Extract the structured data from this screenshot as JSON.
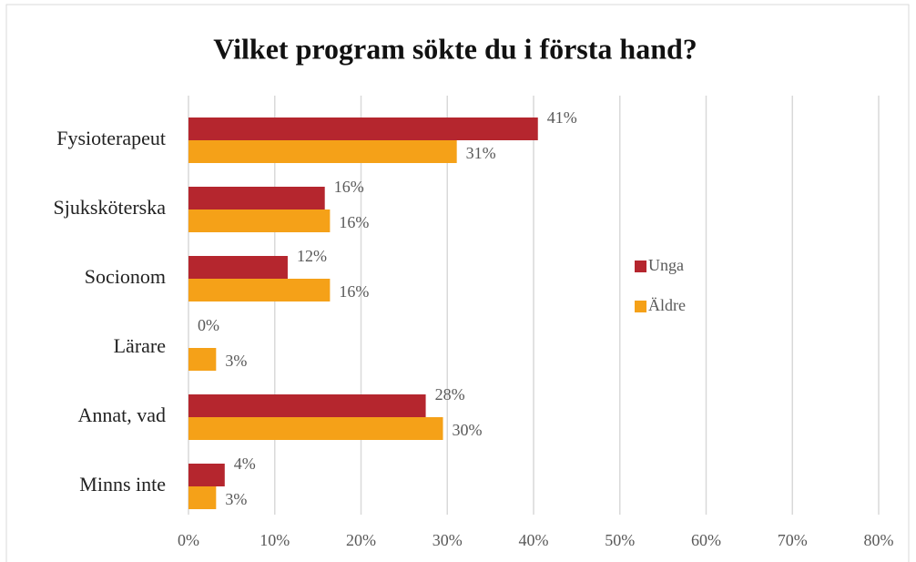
{
  "chart_data": {
    "type": "hbar",
    "title": "Vilket program sökte du i första hand?",
    "categories": [
      "Fysioterapeut",
      "Sjuksköterska",
      "Socionom",
      "Lärare",
      "Annat, vad",
      "Minns inte"
    ],
    "series": [
      {
        "name": "Unga",
        "color": "#b5262e",
        "values": [
          40.5,
          15.8,
          11.5,
          0,
          27.5,
          4.2
        ],
        "value_labels": [
          "41%",
          "16%",
          "12%",
          "0%",
          "28%",
          "4%"
        ]
      },
      {
        "name": "Äldre",
        "color": "#f5a118",
        "values": [
          31.1,
          16.4,
          16.4,
          3.2,
          29.5,
          3.2
        ],
        "value_labels": [
          "31%",
          "16%",
          "16%",
          "3%",
          "30%",
          "3%"
        ]
      }
    ],
    "xlim": [
      0,
      80
    ],
    "xticks": [
      {
        "value": 0,
        "label": "0%"
      },
      {
        "value": 10,
        "label": "10%"
      },
      {
        "value": 20,
        "label": "20%"
      },
      {
        "value": 30,
        "label": "30%"
      },
      {
        "value": 40,
        "label": "40%"
      },
      {
        "value": 50,
        "label": "50%"
      },
      {
        "value": 60,
        "label": "60%"
      },
      {
        "value": 70,
        "label": "70%"
      },
      {
        "value": 80,
        "label": "80%"
      }
    ],
    "grid": true,
    "legend": "right"
  }
}
